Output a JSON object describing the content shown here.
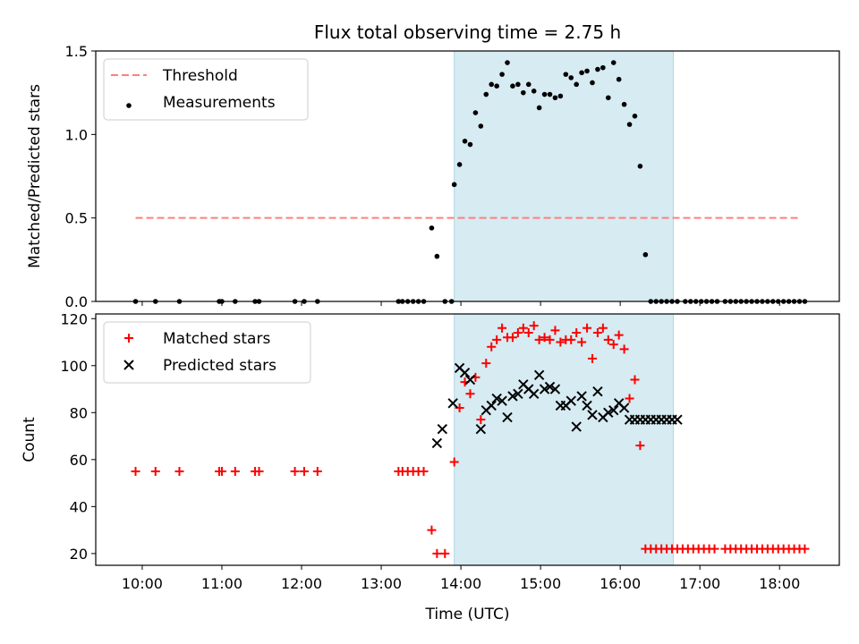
{
  "chart_data": [
    {
      "type": "scatter",
      "title": "Flux total observing time = 2.75 h",
      "xlabel": "",
      "ylabel": "Matched/Predicted stars",
      "xlim": [
        "09:25",
        "18:45"
      ],
      "ylim": [
        0,
        1.5
      ],
      "y_ticks": [
        0.0,
        0.5,
        1.0,
        1.5
      ],
      "y_tick_labels": [
        "0.0",
        "0.5",
        "1.0",
        "1.5"
      ],
      "x_ticks_shown_without_labels": true,
      "grid": false,
      "legend_position": "upper left",
      "shaded_interval": {
        "from": "13:55",
        "to": "16:40",
        "color": "#add8e6"
      },
      "series": [
        {
          "name": "Threshold",
          "style": "dashed-line",
          "color": "#ff7f7f",
          "x": [
            "09:55",
            "18:15"
          ],
          "y": [
            0.5,
            0.5
          ]
        },
        {
          "name": "Measurements",
          "style": "dot",
          "color": "#000000",
          "x": [
            "09:55",
            "10:10",
            "10:28",
            "10:58",
            "11:00",
            "11:10",
            "11:25",
            "11:28",
            "11:55",
            "12:02",
            "12:12",
            "13:13",
            "13:16",
            "13:20",
            "13:24",
            "13:28",
            "13:32",
            "13:38",
            "13:42",
            "13:48",
            "13:53",
            "13:55",
            "13:59",
            "14:03",
            "14:07",
            "14:11",
            "14:15",
            "14:19",
            "14:23",
            "14:27",
            "14:31",
            "14:35",
            "14:39",
            "14:43",
            "14:47",
            "14:51",
            "14:55",
            "14:59",
            "15:03",
            "15:07",
            "15:11",
            "15:15",
            "15:19",
            "15:23",
            "15:27",
            "15:31",
            "15:35",
            "15:39",
            "15:43",
            "15:47",
            "15:51",
            "15:55",
            "15:59",
            "16:03",
            "16:07",
            "16:11",
            "16:15",
            "16:19",
            "16:23",
            "16:27",
            "16:31",
            "16:35",
            "16:39",
            "16:43",
            "16:49",
            "16:53",
            "16:57",
            "17:01",
            "17:05",
            "17:09",
            "17:13",
            "17:19",
            "17:23",
            "17:27",
            "17:31",
            "17:35",
            "17:39",
            "17:43",
            "17:47",
            "17:51",
            "17:55",
            "17:59",
            "18:03",
            "18:07",
            "18:11",
            "18:15",
            "18:19"
          ],
          "y": [
            0,
            0,
            0,
            0,
            0,
            0,
            0,
            0,
            0,
            0,
            0,
            0,
            0,
            0,
            0,
            0,
            0,
            0.44,
            0.27,
            0,
            0,
            0.7,
            0.82,
            0.96,
            0.94,
            1.13,
            1.05,
            1.24,
            1.3,
            1.29,
            1.36,
            1.43,
            1.29,
            1.3,
            1.25,
            1.3,
            1.26,
            1.16,
            1.24,
            1.24,
            1.22,
            1.23,
            1.36,
            1.34,
            1.3,
            1.37,
            1.38,
            1.31,
            1.39,
            1.4,
            1.22,
            1.43,
            1.33,
            1.18,
            1.06,
            1.11,
            0.81,
            0.28,
            0,
            0,
            0,
            0,
            0,
            0,
            0,
            0,
            0,
            0,
            0,
            0,
            0,
            0,
            0,
            0,
            0,
            0,
            0,
            0,
            0,
            0,
            0,
            0,
            0,
            0,
            0,
            0,
            0
          ]
        }
      ]
    },
    {
      "type": "scatter",
      "title": "",
      "xlabel": "Time (UTC)",
      "ylabel": "Count",
      "xlim": [
        "09:25",
        "18:45"
      ],
      "ylim": [
        15,
        122
      ],
      "y_ticks": [
        20,
        40,
        60,
        80,
        100,
        120
      ],
      "y_tick_labels": [
        "20",
        "40",
        "60",
        "80",
        "100",
        "120"
      ],
      "x_ticks": [
        "10:00",
        "11:00",
        "12:00",
        "13:00",
        "14:00",
        "15:00",
        "16:00",
        "17:00",
        "18:00"
      ],
      "x_tick_labels": [
        "10:00",
        "11:00",
        "12:00",
        "13:00",
        "14:00",
        "15:00",
        "16:00",
        "17:00",
        "18:00"
      ],
      "grid": false,
      "legend_position": "upper left",
      "shaded_interval": {
        "from": "13:55",
        "to": "16:40",
        "color": "#add8e6"
      },
      "series": [
        {
          "name": "Matched stars",
          "marker": "+",
          "color": "#ff0000",
          "x": [
            "09:55",
            "10:10",
            "10:28",
            "10:58",
            "11:00",
            "11:10",
            "11:25",
            "11:28",
            "11:55",
            "12:02",
            "12:12",
            "13:13",
            "13:16",
            "13:20",
            "13:24",
            "13:28",
            "13:32",
            "13:38",
            "13:42",
            "13:48",
            "13:55",
            "13:59",
            "14:03",
            "14:07",
            "14:11",
            "14:15",
            "14:19",
            "14:23",
            "14:27",
            "14:31",
            "14:35",
            "14:39",
            "14:43",
            "14:47",
            "14:51",
            "14:55",
            "14:59",
            "15:03",
            "15:07",
            "15:11",
            "15:15",
            "15:19",
            "15:23",
            "15:27",
            "15:31",
            "15:35",
            "15:39",
            "15:43",
            "15:47",
            "15:51",
            "15:55",
            "15:59",
            "16:03",
            "16:07",
            "16:11",
            "16:15",
            "16:19",
            "16:23",
            "16:27",
            "16:31",
            "16:35",
            "16:39",
            "16:43",
            "16:47",
            "16:51",
            "16:55",
            "16:59",
            "17:03",
            "17:07",
            "17:11",
            "17:19",
            "17:23",
            "17:27",
            "17:31",
            "17:35",
            "17:39",
            "17:43",
            "17:47",
            "17:51",
            "17:55",
            "17:59",
            "18:03",
            "18:07",
            "18:11",
            "18:15",
            "18:19"
          ],
          "y": [
            55,
            55,
            55,
            55,
            55,
            55,
            55,
            55,
            55,
            55,
            55,
            55,
            55,
            55,
            55,
            55,
            55,
            30,
            20,
            20,
            59,
            82,
            93,
            88,
            95,
            77,
            101,
            108,
            111,
            116,
            112,
            112,
            114,
            116,
            114,
            117,
            111,
            112,
            111,
            115,
            110,
            111,
            111,
            114,
            110,
            116,
            103,
            114,
            116,
            111,
            109,
            113,
            107,
            86,
            94,
            66,
            22,
            22,
            22,
            22,
            22,
            22,
            22,
            22,
            22,
            22,
            22,
            22,
            22,
            22,
            22,
            22,
            22,
            22,
            22,
            22,
            22,
            22,
            22,
            22,
            22,
            22,
            22,
            22,
            22,
            22
          ]
        },
        {
          "name": "Predicted stars",
          "marker": "x",
          "color": "#000000",
          "x": [
            "13:42",
            "13:46",
            "13:54",
            "13:59",
            "14:03",
            "14:07",
            "14:15",
            "14:19",
            "14:23",
            "14:27",
            "14:31",
            "14:35",
            "14:39",
            "14:43",
            "14:47",
            "14:51",
            "14:55",
            "14:59",
            "15:03",
            "15:07",
            "15:11",
            "15:15",
            "15:19",
            "15:23",
            "15:27",
            "15:31",
            "15:35",
            "15:39",
            "15:43",
            "15:47",
            "15:51",
            "15:55",
            "15:59",
            "16:03",
            "16:07",
            "16:11",
            "16:15",
            "16:19",
            "16:23",
            "16:27",
            "16:31",
            "16:35",
            "16:39",
            "16:43"
          ],
          "y": [
            67,
            73,
            84,
            99,
            97,
            94,
            73,
            81,
            83,
            86,
            85,
            78,
            87,
            88,
            92,
            90,
            88,
            96,
            90,
            91,
            90,
            83,
            83,
            85,
            74,
            87,
            83,
            79,
            89,
            78,
            80,
            81,
            84,
            82,
            77,
            77,
            77,
            77,
            77,
            77,
            77,
            77,
            77,
            77
          ]
        }
      ]
    }
  ]
}
